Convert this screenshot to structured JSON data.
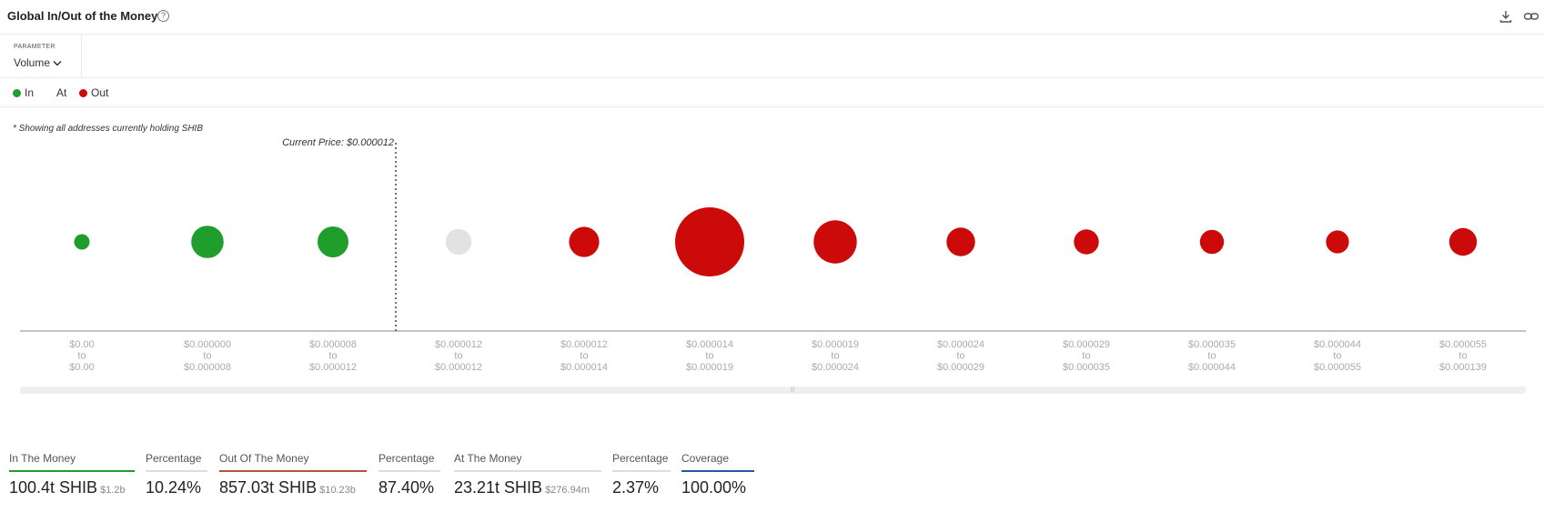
{
  "header": {
    "title": "Global In/Out of the Money"
  },
  "parameter": {
    "label": "PARAMETER",
    "value": "Volume"
  },
  "legend": [
    {
      "label": "In",
      "color": "#1f9e2c"
    },
    {
      "label": "At",
      "color": ""
    },
    {
      "label": "Out",
      "color": "#cc0a0a"
    }
  ],
  "note": "* Showing all addresses currently holding SHIB",
  "chart_data": {
    "type": "scatter",
    "annotation": "Current Price: $0.000012",
    "current_price_after_index": 2.5,
    "colors": {
      "in": "#1f9e2c",
      "at": "#e2e2e2",
      "out": "#cc0a0a"
    },
    "bins": [
      {
        "range": [
          "$0.00",
          "to",
          "$0.00"
        ],
        "status": "in",
        "relative_volume": 0.05
      },
      {
        "range": [
          "$0.000000",
          "to",
          "$0.000008"
        ],
        "status": "in",
        "relative_volume": 0.22
      },
      {
        "range": [
          "$0.000008",
          "to",
          "$0.000012"
        ],
        "status": "in",
        "relative_volume": 0.2
      },
      {
        "range": [
          "$0.000012",
          "to",
          "$0.000012"
        ],
        "status": "at",
        "relative_volume": 0.14
      },
      {
        "range": [
          "$0.000012",
          "to",
          "$0.000014"
        ],
        "status": "out",
        "relative_volume": 0.19
      },
      {
        "range": [
          "$0.000014",
          "to",
          "$0.000019"
        ],
        "status": "out",
        "relative_volume": 1.0
      },
      {
        "range": [
          "$0.000019",
          "to",
          "$0.000024"
        ],
        "status": "out",
        "relative_volume": 0.39
      },
      {
        "range": [
          "$0.000024",
          "to",
          "$0.000029"
        ],
        "status": "out",
        "relative_volume": 0.17
      },
      {
        "range": [
          "$0.000029",
          "to",
          "$0.000035"
        ],
        "status": "out",
        "relative_volume": 0.13
      },
      {
        "range": [
          "$0.000035",
          "to",
          "$0.000044"
        ],
        "status": "out",
        "relative_volume": 0.12
      },
      {
        "range": [
          "$0.000044",
          "to",
          "$0.000055"
        ],
        "status": "out",
        "relative_volume": 0.11
      },
      {
        "range": [
          "$0.000055",
          "to",
          "$0.000139"
        ],
        "status": "out",
        "relative_volume": 0.16
      }
    ]
  },
  "stats": [
    {
      "label": "In The Money",
      "value": "100.4t SHIB",
      "sub": "$1.2b",
      "color": "#1f9e2c"
    },
    {
      "label": "Percentage",
      "value": "10.24%",
      "sub": "",
      "color": "#dddddd"
    },
    {
      "label": "Out Of The Money",
      "value": "857.03t SHIB",
      "sub": "$10.23b",
      "color": "#b5523f"
    },
    {
      "label": "Percentage",
      "value": "87.40%",
      "sub": "",
      "color": "#dddddd"
    },
    {
      "label": "At The Money",
      "value": "23.21t SHIB",
      "sub": "$276.94m",
      "color": "#dddddd"
    },
    {
      "label": "Percentage",
      "value": "2.37%",
      "sub": "",
      "color": "#dddddd"
    },
    {
      "label": "Coverage",
      "value": "100.00%",
      "sub": "",
      "color": "#2855a8"
    }
  ]
}
